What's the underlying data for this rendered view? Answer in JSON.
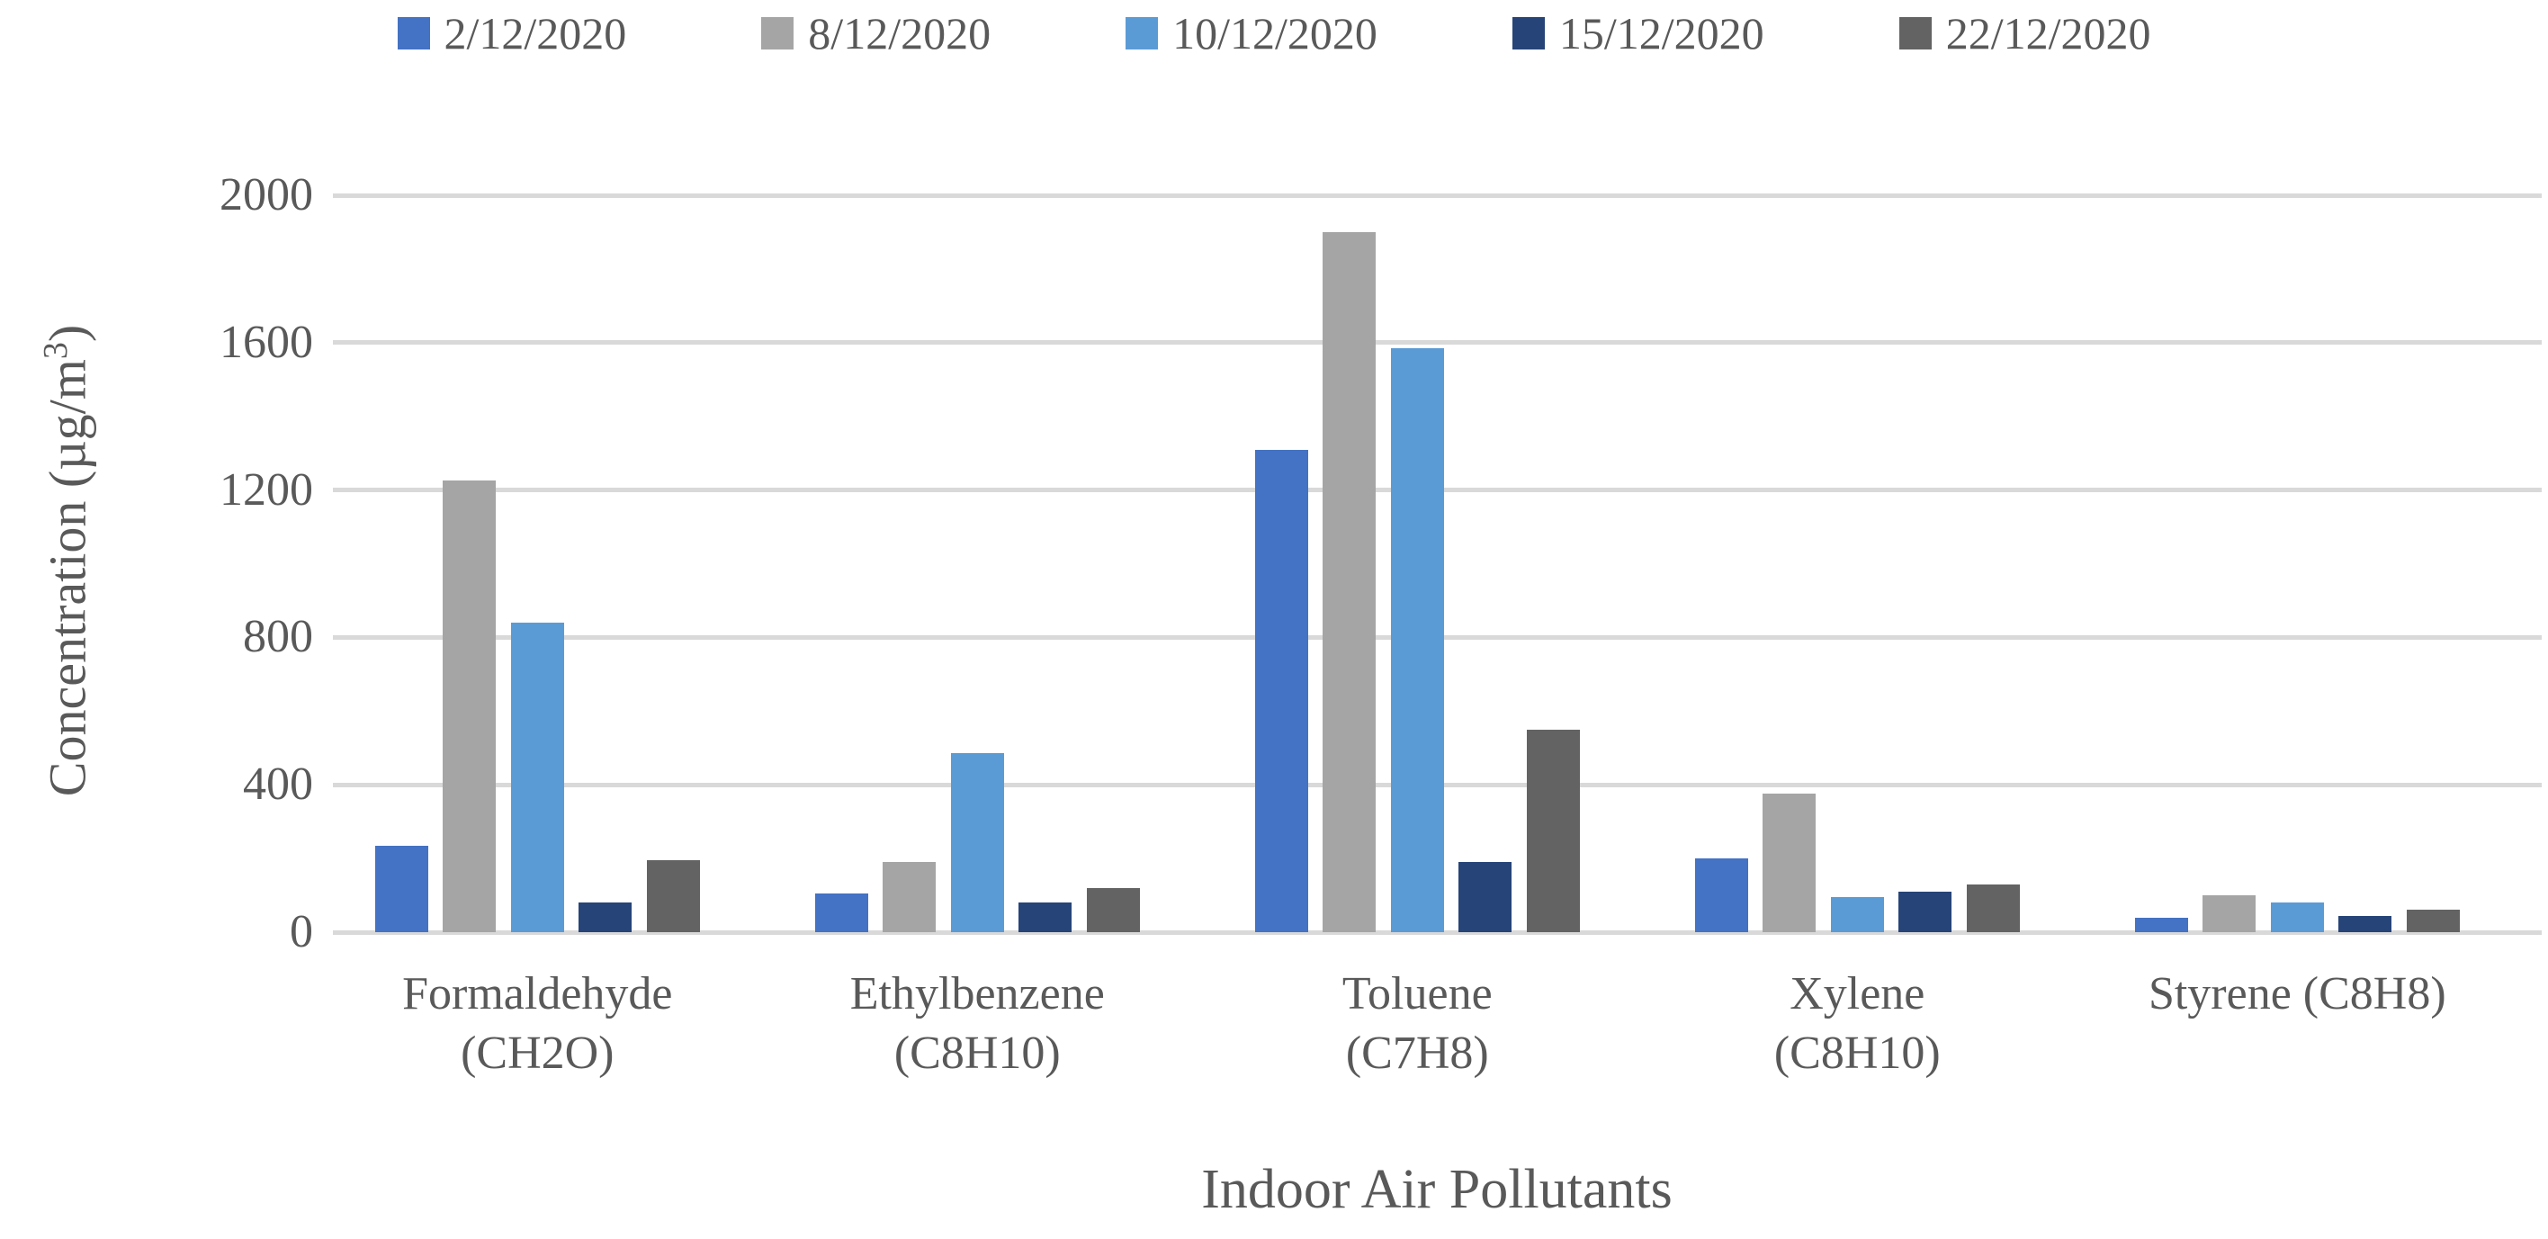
{
  "chart_data": {
    "type": "bar",
    "title": "",
    "xlabel": "Indoor Air Pollutants",
    "ylabel": "Concentration (µg/m³)",
    "ylabel_parts": {
      "prefix": "Concentration (µg/m",
      "sup": "3",
      "suffix": ")"
    },
    "ylim": [
      0,
      2000
    ],
    "yticks": [
      0,
      400,
      800,
      1200,
      1600,
      2000
    ],
    "grid": true,
    "legend_position": "top",
    "categories": [
      {
        "label": "Formaldehyde (CH2O)",
        "lines": [
          "Formaldehyde",
          "(CH2O)"
        ]
      },
      {
        "label": "Ethylbenzene (C8H10)",
        "lines": [
          "Ethylbenzene",
          "(C8H10)"
        ]
      },
      {
        "label": "Toluene (C7H8)",
        "lines": [
          "Toluene",
          "(C7H8)"
        ]
      },
      {
        "label": "Xylene (C8H10)",
        "lines": [
          "Xylene",
          "(C8H10)"
        ]
      },
      {
        "label": "Styrene (C8H8)",
        "lines": [
          "Styrene (C8H8)"
        ]
      }
    ],
    "series": [
      {
        "name": "2/12/2020",
        "color": "#4472C4",
        "values": [
          235,
          105,
          1310,
          200,
          40
        ]
      },
      {
        "name": "8/12/2020",
        "color": "#A5A5A5",
        "values": [
          1225,
          190,
          1900,
          375,
          100
        ]
      },
      {
        "name": "10/12/2020",
        "color": "#5B9BD5",
        "values": [
          840,
          485,
          1585,
          95,
          80
        ]
      },
      {
        "name": "15/12/2020",
        "color": "#264478",
        "values": [
          80,
          80,
          190,
          110,
          45
        ]
      },
      {
        "name": "22/12/2020",
        "color": "#636363",
        "values": [
          195,
          120,
          550,
          130,
          60
        ]
      }
    ]
  },
  "colors": {
    "text": "#595959",
    "gridline": "#D9D9D9",
    "background": "#FFFFFF"
  }
}
